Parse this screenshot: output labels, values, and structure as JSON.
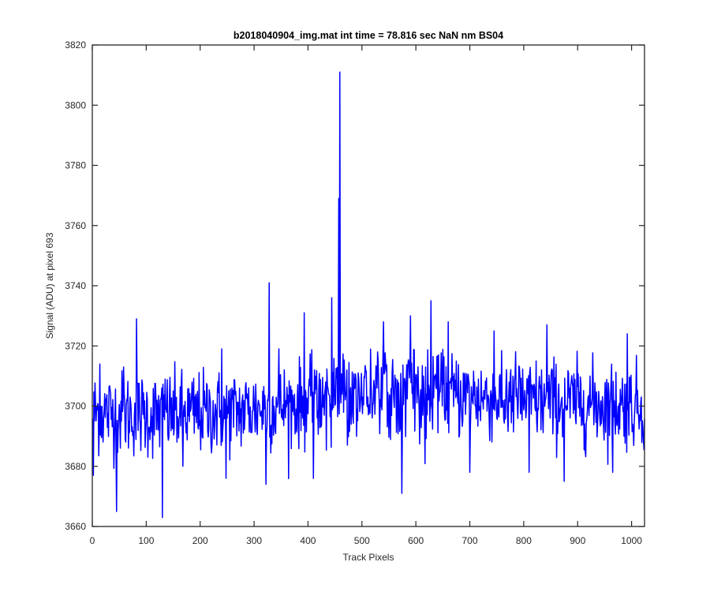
{
  "chart_data": {
    "type": "line",
    "title": "b2018040904_img.mat int time = 78.816 sec  NaN nm BS04",
    "xlabel": "Track Pixels",
    "ylabel": "Signal (ADU) at pixel 693",
    "xlim": [
      0,
      1024
    ],
    "ylim": [
      3660,
      3820
    ],
    "xticks": [
      0,
      100,
      200,
      300,
      400,
      500,
      600,
      700,
      800,
      900,
      1000
    ],
    "yticks": [
      3660,
      3680,
      3700,
      3720,
      3740,
      3760,
      3780,
      3800,
      3820
    ],
    "grid": false,
    "series": [
      {
        "color": "#0000ff",
        "x_start": 1,
        "x_step": 1,
        "noise_sigma": 7,
        "baseline": [
          [
            1,
            3698
          ],
          [
            120,
            3697
          ],
          [
            250,
            3698
          ],
          [
            400,
            3701
          ],
          [
            500,
            3705
          ],
          [
            650,
            3704
          ],
          [
            800,
            3702
          ],
          [
            1024,
            3700
          ]
        ],
        "peaks": [
          {
            "x": 2,
            "y": 3677
          },
          {
            "x": 14,
            "y": 3714
          },
          {
            "x": 45,
            "y": 3665
          },
          {
            "x": 58,
            "y": 3713
          },
          {
            "x": 82,
            "y": 3729
          },
          {
            "x": 130,
            "y": 3663
          },
          {
            "x": 135,
            "y": 3709
          },
          {
            "x": 168,
            "y": 3680
          },
          {
            "x": 240,
            "y": 3719
          },
          {
            "x": 248,
            "y": 3676
          },
          {
            "x": 322,
            "y": 3674
          },
          {
            "x": 328,
            "y": 3741
          },
          {
            "x": 346,
            "y": 3719
          },
          {
            "x": 393,
            "y": 3731
          },
          {
            "x": 410,
            "y": 3676
          },
          {
            "x": 444,
            "y": 3736
          },
          {
            "x": 457,
            "y": 3769
          },
          {
            "x": 459,
            "y": 3811
          },
          {
            "x": 472,
            "y": 3712
          },
          {
            "x": 540,
            "y": 3728
          },
          {
            "x": 574,
            "y": 3671
          },
          {
            "x": 590,
            "y": 3730
          },
          {
            "x": 628,
            "y": 3735
          },
          {
            "x": 660,
            "y": 3728
          },
          {
            "x": 700,
            "y": 3678
          },
          {
            "x": 745,
            "y": 3725
          },
          {
            "x": 810,
            "y": 3678
          },
          {
            "x": 843,
            "y": 3727
          },
          {
            "x": 875,
            "y": 3675
          },
          {
            "x": 965,
            "y": 3678
          },
          {
            "x": 992,
            "y": 3724
          }
        ]
      }
    ]
  }
}
